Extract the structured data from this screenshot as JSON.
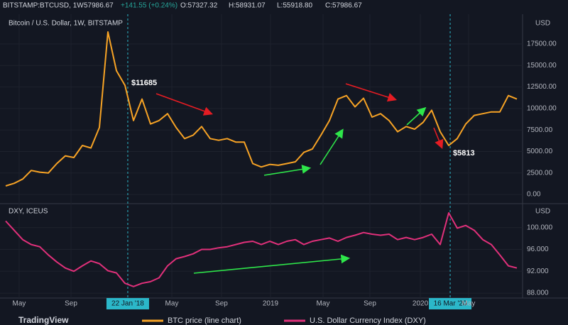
{
  "header": {
    "symbol": "BITSTAMP:BTCUSD, 1W",
    "last": "57986.67",
    "change": "+141.55 (+0.24%)",
    "open": "O:57327.32",
    "high": "H:58931.07",
    "low": "L:55918.80",
    "close": "C:57986.67",
    "brand": "TradingView"
  },
  "chart_data": [
    {
      "type": "line",
      "title": "Bitcoin / U.S. Dollar, 1W, BITSTAMP",
      "unit": "USD",
      "series": [
        {
          "name": "BTC price (line chart)",
          "color": "#f7a325",
          "values": [
            1000,
            1300,
            1800,
            2800,
            2600,
            2500,
            3600,
            4500,
            4300,
            5700,
            5400,
            7800,
            18900,
            14400,
            12700,
            8600,
            11100,
            8200,
            8600,
            9400,
            7800,
            6500,
            6900,
            7900,
            6500,
            6300,
            6500,
            6100,
            6100,
            3600,
            3200,
            3500,
            3400,
            3600,
            3800,
            4900,
            5300,
            6900,
            8600,
            11100,
            11500,
            10200,
            11200,
            9000,
            9400,
            8600,
            7300,
            7900,
            7600,
            8400,
            9800,
            7300,
            5700,
            6500,
            8200,
            9200,
            9400,
            9600,
            9600,
            11500,
            11100
          ]
        }
      ],
      "xlim": [
        0,
        60
      ],
      "ylim": [
        -900,
        20800
      ],
      "yticks": [
        {
          "value": 0,
          "label": "0.00"
        },
        {
          "value": 2500,
          "label": "2500.00"
        },
        {
          "value": 5000,
          "label": "5000.00"
        },
        {
          "value": 7500,
          "label": "7500.00"
        },
        {
          "value": 10000,
          "label": "10000.00"
        },
        {
          "value": 12500,
          "label": "12500.00"
        },
        {
          "value": 15000,
          "label": "15000.00"
        },
        {
          "value": 17500,
          "label": "17500.00"
        }
      ],
      "annotations": [
        "$11685",
        "$5813"
      ]
    },
    {
      "type": "line",
      "title": "DXY, ICEUS",
      "unit": "USD",
      "series": [
        {
          "name": "U.S. Dollar Currency Index (DXY)",
          "color": "#e0307a",
          "values": [
            101.2,
            99.5,
            97.8,
            96.9,
            96.5,
            95.0,
            93.7,
            92.6,
            92.0,
            93.0,
            93.9,
            93.4,
            92.1,
            91.7,
            89.8,
            89.2,
            89.8,
            90.1,
            90.8,
            93.0,
            94.3,
            94.7,
            95.2,
            96.0,
            96.0,
            96.3,
            96.5,
            96.9,
            97.3,
            97.5,
            96.9,
            97.5,
            96.9,
            97.5,
            97.8,
            96.9,
            97.5,
            97.8,
            98.1,
            97.5,
            98.2,
            98.6,
            99.1,
            98.8,
            98.6,
            98.8,
            97.8,
            98.2,
            97.8,
            98.2,
            98.8,
            96.9,
            102.7,
            99.9,
            100.4,
            99.5,
            97.8,
            96.9,
            95.0,
            93.0,
            92.6
          ]
        }
      ],
      "xlim": [
        0,
        60
      ],
      "ylim": [
        87.1,
        104
      ],
      "yticks": [
        {
          "value": 88,
          "label": "88.000"
        },
        {
          "value": 92,
          "label": "92.000"
        },
        {
          "value": 96,
          "label": "96.000"
        },
        {
          "value": 100,
          "label": "100.000"
        }
      ],
      "xticks": [
        {
          "value": 1.58,
          "label": "May"
        },
        {
          "value": 7.67,
          "label": "Sep"
        },
        {
          "value": 14.33,
          "label": "22 Jan '18"
        },
        {
          "value": 19.5,
          "label": "May"
        },
        {
          "value": 25.33,
          "label": "Sep"
        },
        {
          "value": 31.08,
          "label": "2019"
        },
        {
          "value": 37.25,
          "label": "May"
        },
        {
          "value": 42.75,
          "label": "Sep"
        },
        {
          "value": 48.67,
          "label": "2020"
        },
        {
          "value": 52.17,
          "label": "16 Mar '20"
        },
        {
          "value": 54.33,
          "label": "May"
        }
      ]
    }
  ]
}
